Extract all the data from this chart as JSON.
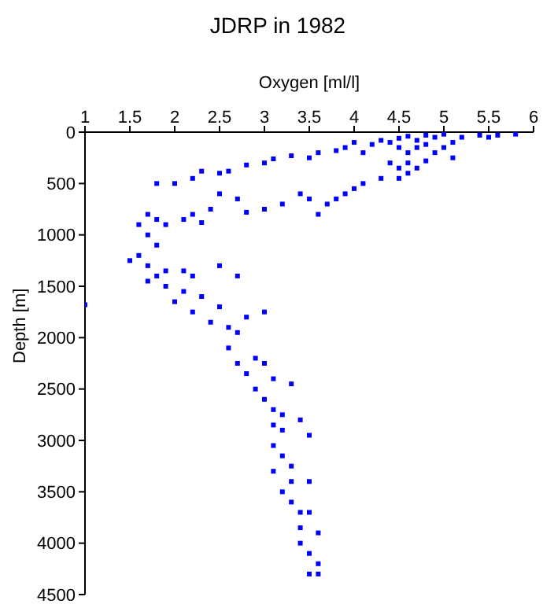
{
  "chart_data": {
    "type": "scatter",
    "title": "JDRP in 1982",
    "xlabel": "Oxygen [ml/l]",
    "ylabel": "Depth [m]",
    "xlim": [
      1,
      6
    ],
    "xticks": [
      1,
      1.5,
      2,
      2.5,
      3,
      3.5,
      4,
      4.5,
      5,
      5.5,
      6
    ],
    "ylim": [
      4500,
      0
    ],
    "yticks": [
      0,
      500,
      1000,
      1500,
      2000,
      2500,
      3000,
      3500,
      4000,
      4500
    ],
    "grid": false,
    "legend": false,
    "marker": "square",
    "series": [
      {
        "color": "#0000ff",
        "x": [
          5.8,
          5.6,
          5.4,
          5.5,
          5.2,
          5.1,
          5.0,
          4.9,
          4.8,
          4.7,
          4.6,
          4.5,
          4.5,
          4.6,
          4.7,
          4.8,
          4.9,
          5.0,
          5.1,
          4.4,
          4.3,
          4.2,
          4.0,
          4.1,
          3.9,
          3.8,
          3.6,
          3.5,
          3.3,
          3.1,
          3.0,
          2.8,
          2.6,
          2.5,
          2.3,
          2.2,
          2.0,
          1.8,
          4.6,
          4.5,
          4.6,
          4.5,
          4.7,
          4.8,
          4.4,
          4.3,
          4.1,
          4.0,
          3.9,
          3.8,
          3.7,
          3.5,
          3.4,
          3.6,
          3.2,
          3.0,
          2.8,
          2.7,
          2.5,
          2.4,
          2.2,
          2.3,
          2.1,
          1.9,
          1.8,
          1.7,
          1.6,
          1.7,
          1.8,
          1.6,
          1.5,
          1.7,
          1.8,
          1.9,
          2.1,
          2.2,
          2.5,
          2.7,
          1.7,
          1.9,
          2.1,
          2.3,
          2.5,
          2.0,
          2.2,
          2.4,
          2.8,
          2.6,
          2.7,
          3.0,
          2.6,
          2.7,
          2.9,
          3.0,
          2.8,
          3.1,
          2.9,
          3.3,
          3.0,
          3.1,
          3.2,
          3.4,
          3.1,
          3.2,
          3.5,
          3.1,
          3.2,
          3.3,
          3.1,
          3.3,
          3.5,
          3.2,
          3.3,
          3.4,
          3.5,
          3.4,
          3.6,
          3.4,
          3.5,
          3.6,
          3.5,
          3.6,
          1.0
        ],
        "values": [
          20,
          30,
          30,
          50,
          50,
          100,
          20,
          50,
          30,
          80,
          40,
          60,
          150,
          200,
          150,
          120,
          200,
          150,
          250,
          100,
          80,
          120,
          100,
          200,
          150,
          180,
          200,
          250,
          230,
          260,
          300,
          320,
          380,
          400,
          380,
          450,
          500,
          500,
          300,
          350,
          400,
          450,
          350,
          280,
          300,
          450,
          500,
          550,
          600,
          650,
          700,
          650,
          600,
          800,
          700,
          750,
          780,
          650,
          600,
          750,
          800,
          880,
          850,
          900,
          850,
          800,
          900,
          1000,
          1100,
          1200,
          1250,
          1300,
          1400,
          1350,
          1350,
          1400,
          1300,
          1400,
          1450,
          1500,
          1550,
          1600,
          1700,
          1650,
          1750,
          1850,
          1800,
          1900,
          1950,
          1750,
          2100,
          2250,
          2200,
          2250,
          2350,
          2400,
          2500,
          2450,
          2600,
          2700,
          2750,
          2800,
          2850,
          2900,
          2950,
          3050,
          3150,
          3250,
          3300,
          3400,
          3400,
          3500,
          3600,
          3700,
          3700,
          3850,
          3900,
          4000,
          4100,
          4200,
          4300,
          4300,
          1680
        ]
      }
    ]
  }
}
